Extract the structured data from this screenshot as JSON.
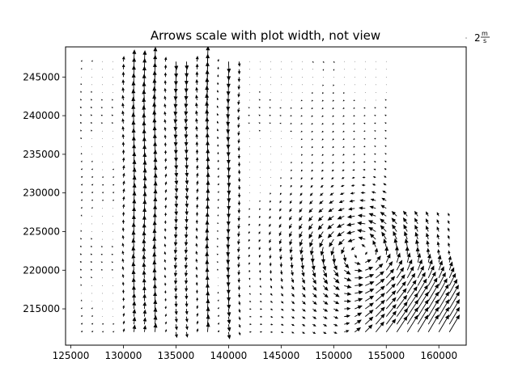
{
  "chart_data": {
    "type": "quiver",
    "title": "Arrows scale with plot width, not view",
    "xlabel": "",
    "ylabel": "",
    "xlim": [
      124500,
      162600
    ],
    "ylim": [
      210300,
      248900
    ],
    "xticks": [
      125000,
      130000,
      135000,
      140000,
      145000,
      150000,
      155000,
      160000
    ],
    "yticks": [
      215000,
      220000,
      225000,
      230000,
      235000,
      240000,
      245000
    ],
    "grid": false,
    "quiverkey": {
      "label_main": "2",
      "label_num": "m",
      "label_den": "s",
      "placement": "outside-top-right"
    },
    "grid_x_start": 126000,
    "grid_x_step": 1000,
    "grid_x_count": 36,
    "grid_y_start": 212000,
    "grid_y_step": 1000,
    "grid_y_count": 36,
    "arrow_color": "#000000"
  }
}
